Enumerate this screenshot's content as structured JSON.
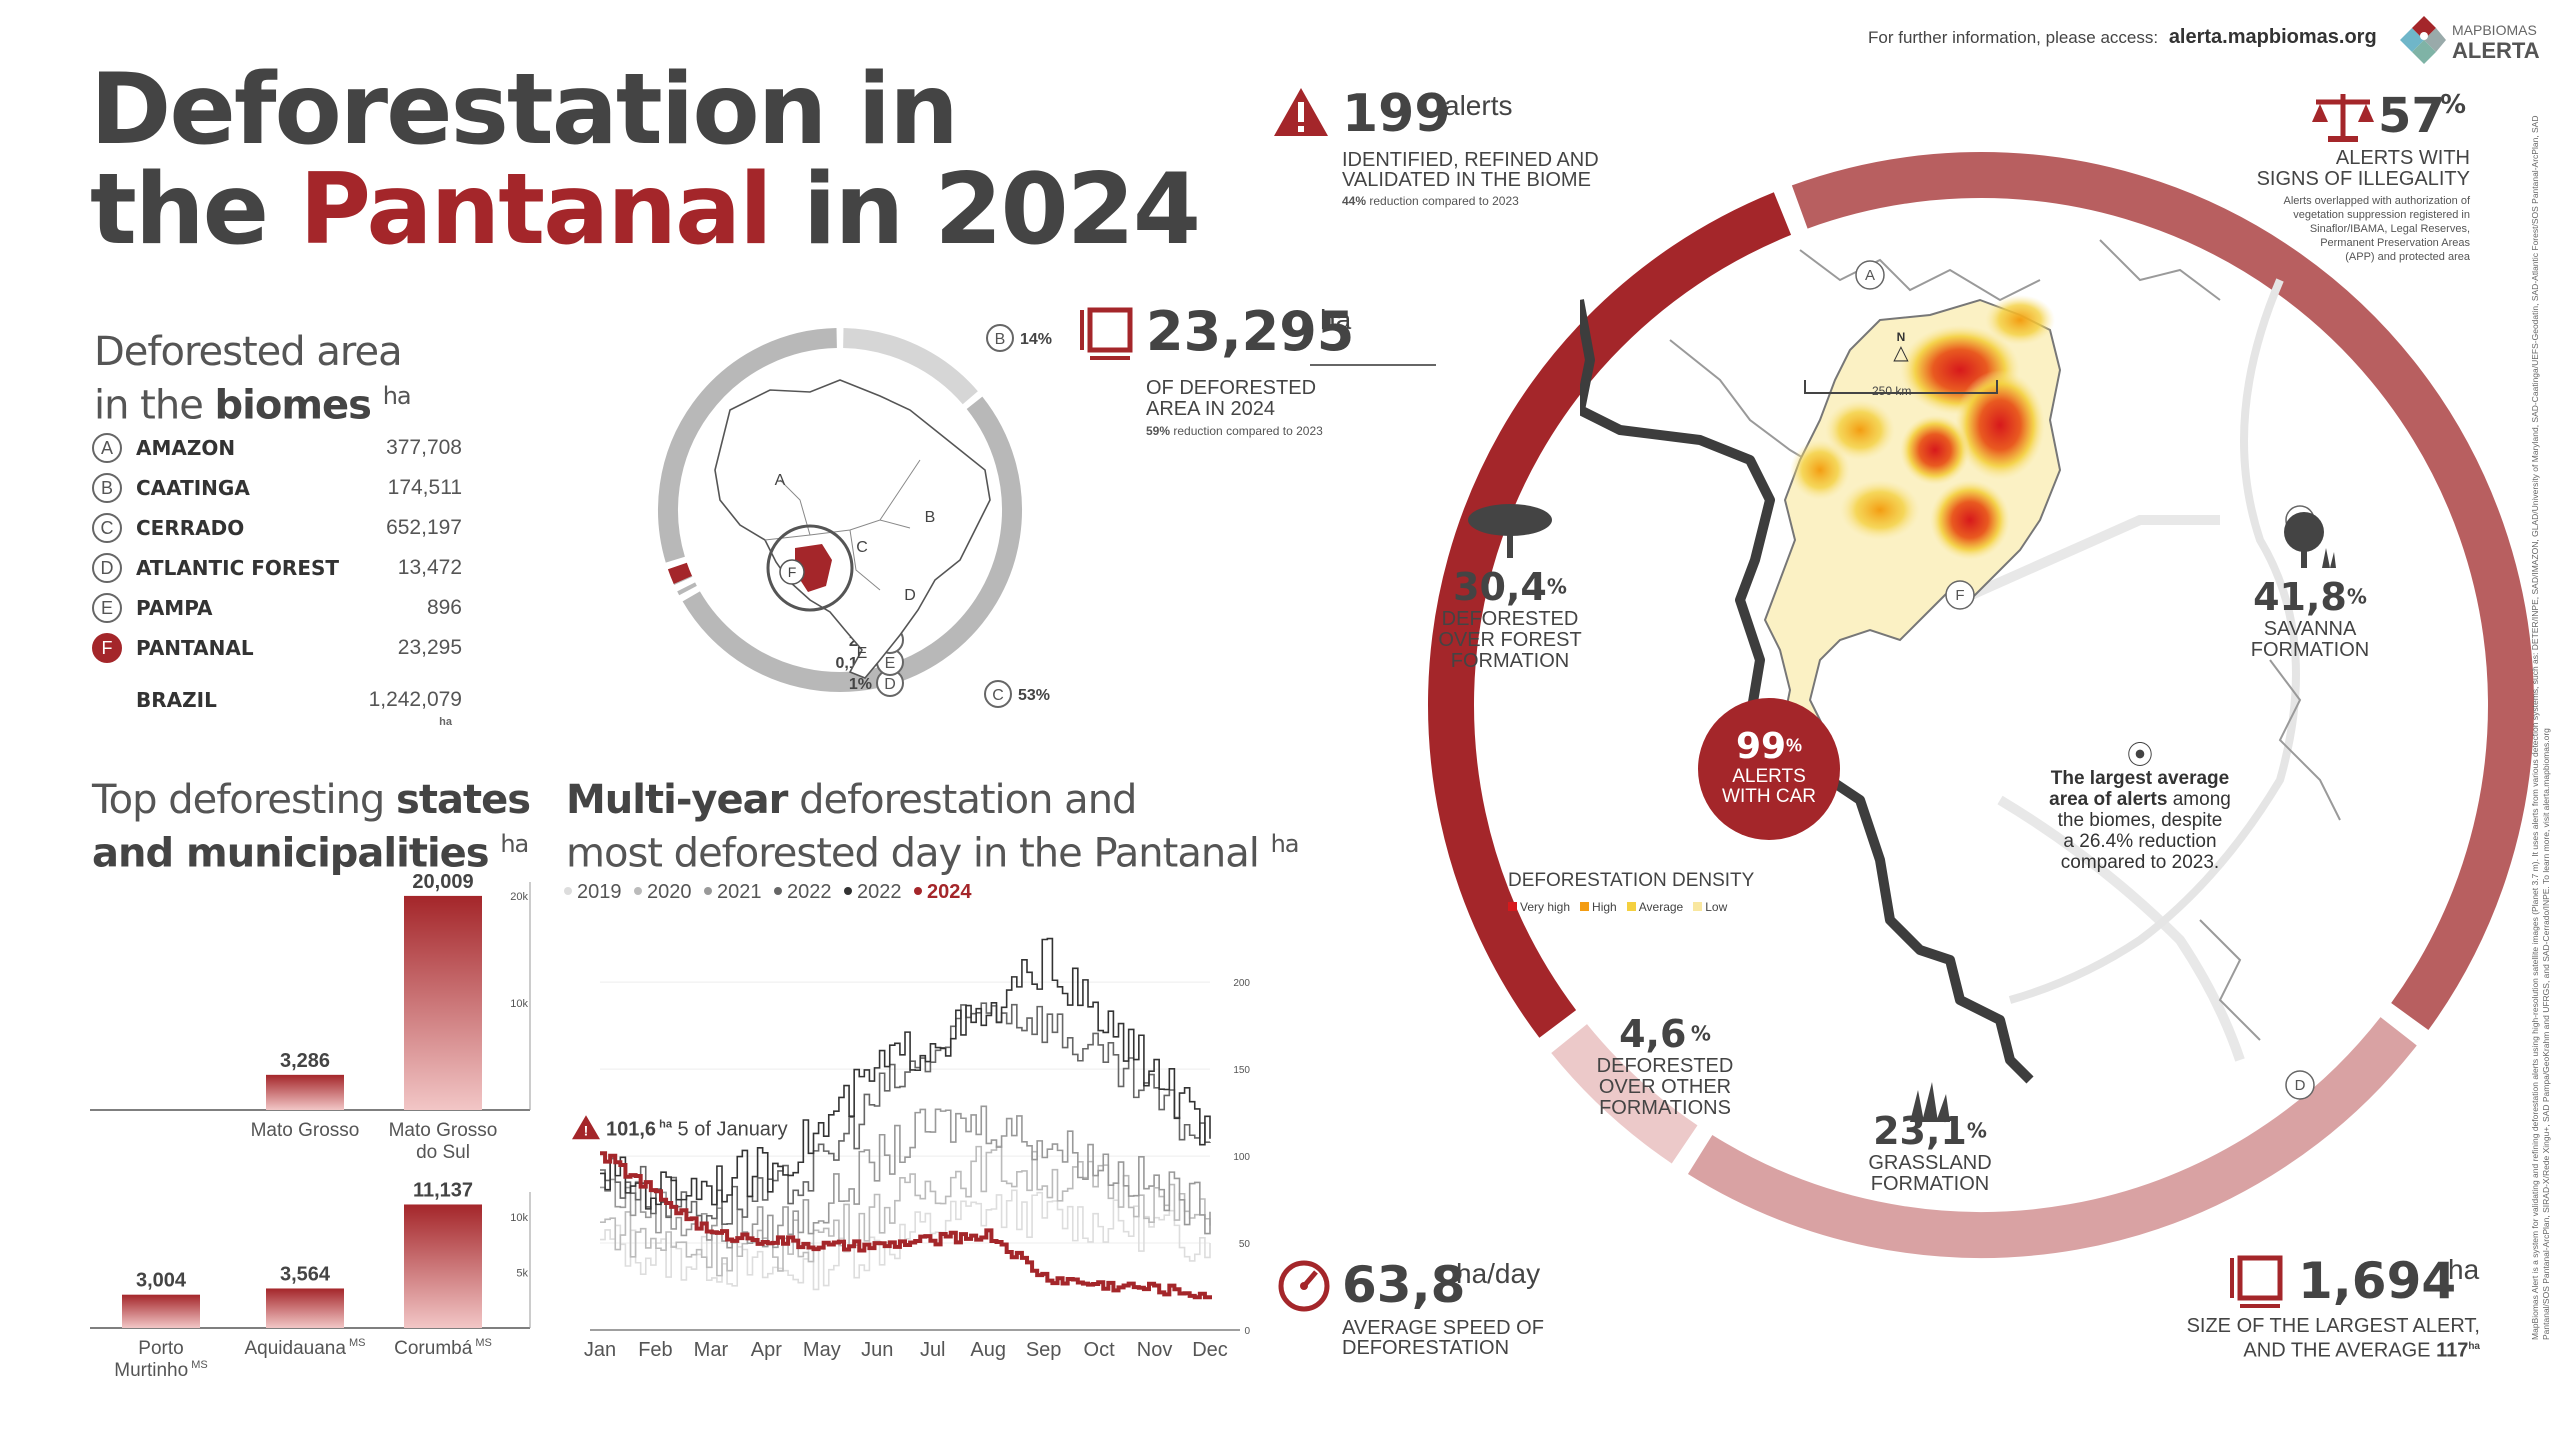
{
  "header": {
    "info_prefix": "For further information, please access:",
    "info_link": "alerta.mapbiomas.org",
    "logo_top": "MAPBIOMAS",
    "logo_bottom": "ALERTA"
  },
  "title": {
    "line1": "Deforestation in",
    "line2_a": "the ",
    "line2_red": "Pantanal",
    "line2_b": " in 2024"
  },
  "biomes": {
    "heading_1": "Deforested area",
    "heading_2a": "in the ",
    "heading_2b": "biomes",
    "unit": "ha",
    "rows": [
      {
        "letter": "A",
        "name": "AMAZON",
        "value": "377,708"
      },
      {
        "letter": "B",
        "name": "CAATINGA",
        "value": "174,511"
      },
      {
        "letter": "C",
        "name": "CERRADO",
        "value": "652,197"
      },
      {
        "letter": "D",
        "name": "ATLANTIC FOREST",
        "value": "13,472"
      },
      {
        "letter": "E",
        "name": "PAMPA",
        "value": "896"
      },
      {
        "letter": "F",
        "name": "PANTANAL",
        "value": "23,295"
      }
    ],
    "total_name": "BRAZIL",
    "total_value": "1,242,079",
    "total_unit": "ha"
  },
  "donut": {
    "slices": [
      {
        "letter": "B",
        "label": "14%",
        "value": 14
      },
      {
        "letter": "C",
        "label": "53%",
        "value": 53
      },
      {
        "letter": "D",
        "label": "1%",
        "value": 1
      },
      {
        "letter": "E",
        "label": "0,1%",
        "value": 0.1
      },
      {
        "letter": "F",
        "label": "2%",
        "value": 2
      },
      {
        "letter": "A",
        "label": "30%",
        "value": 30
      }
    ],
    "map_labels": [
      "A",
      "B",
      "C",
      "D",
      "E",
      "F"
    ]
  },
  "states": {
    "heading_1a": "Top deforesting ",
    "heading_1b": "states",
    "heading_2": "and municipalities",
    "unit": "ha"
  },
  "multiyear": {
    "heading_1a": "Multi-year",
    "heading_1b": " deforestation and",
    "heading_2": "most deforested day in the Pantanal",
    "unit": "ha",
    "annotation_value": "101,6",
    "annotation_unit": "ha",
    "annotation_date": "5 of January"
  },
  "stats": {
    "alerts_value": "199",
    "alerts_unit": "alerts",
    "alerts_l1": "IDENTIFIED, REFINED AND",
    "alerts_l2": "VALIDATED IN THE BIOME",
    "alerts_note_b": "44%",
    "alerts_note": " reduction compared to 2023",
    "area_value": "23,295",
    "area_unit": "ha",
    "area_l1": "OF DEFORESTED",
    "area_l2": "AREA IN 2024",
    "area_note_b": "59%",
    "area_note": " reduction compared to 2023",
    "illegal_value": "57",
    "illegal_pct": "%",
    "illegal_l1": "ALERTS WITH",
    "illegal_l2": "SIGNS OF ILLEGALITY",
    "illegal_notes": [
      "Alerts overlapped with authorization of",
      "vegetation suppression registered in",
      "Sinaflor/IBAMA, Legal Reserves,",
      "Permanent Preservation Areas",
      "(APP) and protected area"
    ],
    "forest_value": "30,4",
    "forest_pct": "%",
    "forest_l1": "DEFORESTED",
    "forest_l2": "OVER FOREST",
    "forest_l3": "FORMATION",
    "car_value": "99",
    "car_pct": "%",
    "car_l1": "ALERTS",
    "car_l2": "WITH CAR",
    "savanna_value": "41,8",
    "savanna_pct": "%",
    "savanna_l1": "SAVANNA",
    "savanna_l2": "FORMATION",
    "other_value": "4,6",
    "other_pct": "%",
    "other_l1": "DEFORESTED",
    "other_l2": "OVER OTHER",
    "other_l3": "FORMATIONS",
    "grass_value": "23,1",
    "grass_pct": "%",
    "grass_l1": "GRASSLAND",
    "grass_l2": "FORMATION",
    "speed_value": "63,8",
    "speed_unit": "ha/day",
    "speed_l1": "AVERAGE SPEED OF",
    "speed_l2": "DEFORESTATION",
    "largest_value": "1,694",
    "largest_unit": "ha",
    "largest_l1": "SIZE OF THE LARGEST ALERT,",
    "largest_l2": "AND THE AVERAGE",
    "largest_avg": "117",
    "largest_avg_unit": "ha"
  },
  "map": {
    "density_title": "DEFORESTATION DENSITY",
    "density_legend": [
      {
        "label": "Very high",
        "color": "#d7191c"
      },
      {
        "label": "High",
        "color": "#f39c12"
      },
      {
        "label": "Average",
        "color": "#f4d03f"
      },
      {
        "label": "Low",
        "color": "#f9e79f"
      }
    ],
    "scale": "250 km",
    "north": "N",
    "region_labels": [
      "A",
      "C",
      "D",
      "F"
    ],
    "callout_b": "The largest average",
    "callout_b2": "area of alerts",
    "callout_2": " among",
    "callout_3": "the biomes, despite",
    "callout_4": "a 26.4% reduction",
    "callout_5": "compared to 2023."
  },
  "side_note": "MapBiomas Alert is a system for validating and refining deforestation alerts using high-resolution satellite images (Planet 3.7 m). It uses alerts from various detection systems, such as: DETER/INPE, SAD/IMAZON, GLAD/University of Maryland, SAD-Caatinga/UEFS-Geodatin, SAD-Atlantic Forest/SOS Pantanal-ArcPlan, SAD Pantanal/SOS Pantanal-ArcPlan, SIRAD-X/Rede Xingu+, SAD Pampa/GeoKrahm and UFRGS, and SAD-Cerrado/INPE. To learn more, visit alerta.mapbiomas.org",
  "colors": {
    "accent": "#a4262a",
    "ring_light": "#b85f60",
    "ring_pale": "#d9a2a3",
    "ring_faint": "#ecc9c9",
    "grey": "#444444"
  },
  "chart_data": [
    {
      "type": "bar",
      "title": "Top deforesting states",
      "categories": [
        "Mato Grosso",
        "Mato Grosso do Sul"
      ],
      "values": [
        3286,
        20009
      ],
      "value_labels": [
        "3,286",
        "20,009"
      ],
      "ylim": [
        0,
        20000
      ],
      "yticks": [
        "10k",
        "20k"
      ],
      "ytick_values": [
        10000,
        20000
      ]
    },
    {
      "type": "bar",
      "title": "Top deforesting municipalities",
      "categories": [
        "Porto Murtinho",
        "Aquidauana",
        "Corumbá"
      ],
      "category_sup": [
        "MS",
        "MS",
        "MS"
      ],
      "values": [
        3004,
        3564,
        11137
      ],
      "value_labels": [
        "3,004",
        "3,564",
        "11,137"
      ],
      "ylim": [
        0,
        11000
      ],
      "yticks": [
        "5k",
        "10k"
      ],
      "ytick_values": [
        5000,
        10000
      ]
    },
    {
      "type": "line",
      "title": "Multi-year deforestation and most deforested day in the Pantanal",
      "x": [
        "Jan",
        "Feb",
        "Mar",
        "Apr",
        "May",
        "Jun",
        "Jul",
        "Aug",
        "Sep",
        "Oct",
        "Nov",
        "Dec"
      ],
      "ylim": [
        0,
        230
      ],
      "yticks": [
        0,
        50,
        100,
        150,
        200
      ],
      "legend": [
        "2019",
        "2020",
        "2021",
        "2022",
        "2022",
        "2024"
      ],
      "series": [
        {
          "name": "2019",
          "color": "#dddddd",
          "values": [
            52,
            42,
            40,
            32,
            38,
            48,
            60,
            70,
            66,
            62,
            58,
            50
          ]
        },
        {
          "name": "2020",
          "color": "#bbbbbb",
          "values": [
            62,
            50,
            45,
            45,
            55,
            68,
            84,
            95,
            88,
            84,
            75,
            60
          ]
        },
        {
          "name": "2021",
          "color": "#999999",
          "values": [
            82,
            70,
            58,
            58,
            70,
            98,
            118,
            120,
            108,
            96,
            82,
            68
          ]
        },
        {
          "name": "2022",
          "color": "#666666",
          "values": [
            92,
            78,
            70,
            75,
            95,
            135,
            158,
            188,
            178,
            155,
            132,
            108
          ]
        },
        {
          "name": "2022",
          "color": "#333333",
          "values": [
            90,
            80,
            86,
            92,
            116,
            150,
            168,
            178,
            214,
            178,
            148,
            110
          ]
        },
        {
          "name": "2024",
          "color": "#a4262a",
          "values": [
            101.6,
            78,
            55,
            52,
            48,
            48,
            52,
            55,
            30,
            26,
            24,
            20
          ]
        }
      ]
    }
  ]
}
